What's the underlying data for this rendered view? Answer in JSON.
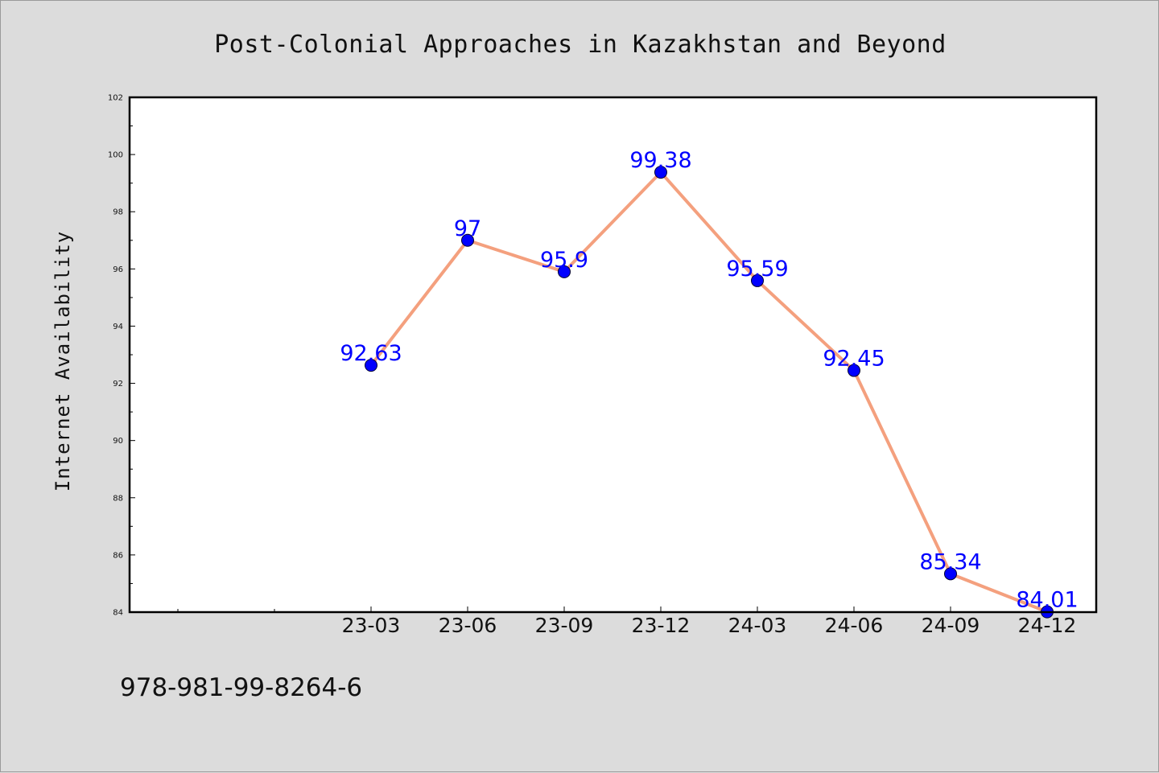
{
  "chart_data": {
    "type": "line",
    "title": "Post-Colonial Approaches in Kazakhstan and Beyond",
    "xlabel": "",
    "ylabel": "Internet Availability",
    "categories": [
      "23-03",
      "23-06",
      "23-09",
      "23-12",
      "24-03",
      "24-06",
      "24-09",
      "24-12"
    ],
    "series": [
      {
        "values": [
          92.63,
          97,
          95.9,
          99.38,
          95.59,
          92.45,
          85.34,
          84.01
        ],
        "labels": [
          "92.63",
          "97",
          "95.9",
          "99.38",
          "95.59",
          "92.45",
          "85.34",
          "84.01"
        ],
        "line_color": "#f4a07e",
        "marker_color": "#0000ff"
      }
    ],
    "ylim": [
      84,
      102
    ],
    "yticks": [
      "84",
      "86",
      "88",
      "90",
      "92",
      "94",
      "96",
      "98",
      "100",
      "102"
    ],
    "grid": false,
    "legend": "none"
  },
  "footer_text": "978-981-99-8264-6",
  "colors": {
    "background": "#dcdcdc",
    "plot_background": "#ffffff",
    "data_label": "#0000ff"
  }
}
